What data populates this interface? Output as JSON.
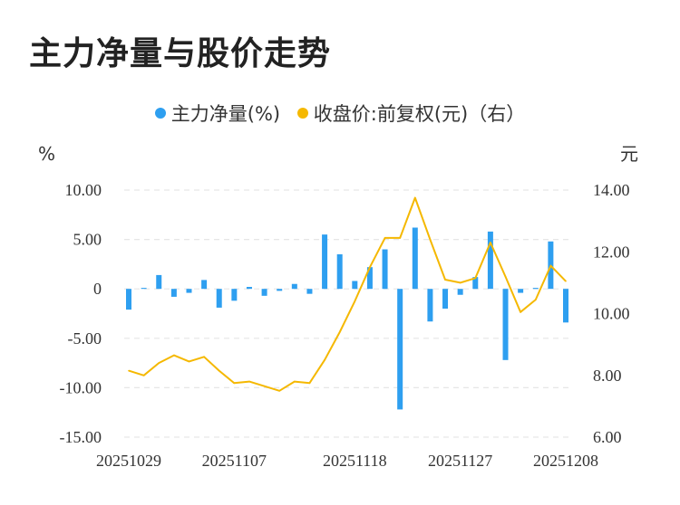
{
  "title": "主力净量与股价走势",
  "legend": [
    {
      "label": "主力净量(%)",
      "color": "#2e9ff0"
    },
    {
      "label": "收盘价:前复权(元)（右）",
      "color": "#f5b800"
    }
  ],
  "chart_data": {
    "type": "bar",
    "title": "主力净量与股价走势",
    "left_unit": "%",
    "right_unit": "元",
    "x_tick_labels": [
      "20251029",
      "20251107",
      "20251118",
      "20251127",
      "20251208"
    ],
    "y_left_ticks": [
      "10.00",
      "5.00",
      "0",
      "-5.00",
      "-10.00",
      "-15.00"
    ],
    "y_right_ticks": [
      "14.00",
      "12.00",
      "10.00",
      "8.00",
      "6.00"
    ],
    "ylim_left": [
      -15,
      10
    ],
    "ylim_right": [
      6,
      14
    ],
    "grid": true,
    "legend_position": "top",
    "series": [
      {
        "name": "主力净量(%)",
        "type": "bar",
        "axis": "left",
        "color": "#2e9ff0",
        "values": [
          -2.1,
          0.1,
          1.4,
          -0.8,
          -0.4,
          0.9,
          -1.9,
          -1.2,
          0.2,
          -0.7,
          -0.2,
          0.5,
          -0.5,
          5.5,
          3.5,
          0.8,
          2.2,
          4.0,
          -12.2,
          6.2,
          -3.3,
          -2.0,
          -0.6,
          1.2,
          5.8,
          -7.2,
          -0.4,
          0.1,
          4.8,
          -3.4
        ]
      },
      {
        "name": "收盘价:前复权(元)（右）",
        "type": "line",
        "axis": "right",
        "color": "#f5b800",
        "values": [
          8.15,
          8.0,
          8.4,
          8.65,
          8.45,
          8.6,
          8.15,
          7.75,
          7.8,
          7.65,
          7.5,
          7.8,
          7.75,
          8.5,
          9.4,
          10.4,
          11.5,
          12.45,
          12.45,
          13.75,
          12.4,
          11.1,
          11.0,
          11.15,
          12.3,
          11.2,
          10.05,
          10.45,
          11.55,
          11.05
        ]
      }
    ]
  }
}
